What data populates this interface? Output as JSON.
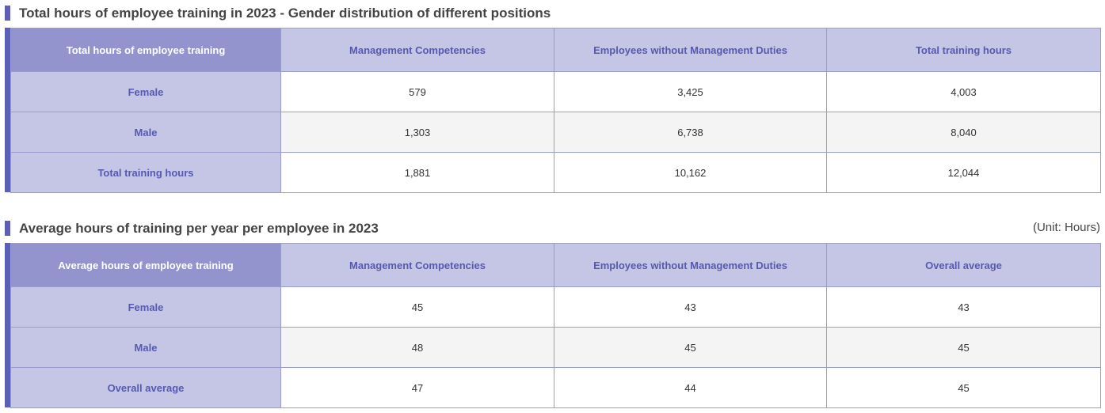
{
  "table1": {
    "title": "Total hours of employee training in 2023 - Gender distribution of different positions",
    "corner_label": "Total hours of employee training",
    "columns": [
      "Management Competencies",
      "Employees without Management Duties",
      "Total training hours"
    ],
    "rows": [
      {
        "label": "Female",
        "values": [
          "579",
          "3,425",
          "4,003"
        ]
      },
      {
        "label": "Male",
        "values": [
          "1,303",
          "6,738",
          "8,040"
        ]
      },
      {
        "label": "Total training hours",
        "values": [
          "1,881",
          "10,162",
          "12,044"
        ]
      }
    ]
  },
  "table2": {
    "title": "Average hours of training per year per employee in 2023",
    "unit": "(Unit: Hours)",
    "corner_label": "Average hours of employee training",
    "columns": [
      "Management Competencies",
      "Employees without Management Duties",
      "Overall average"
    ],
    "rows": [
      {
        "label": "Female",
        "values": [
          "45",
          "43",
          "43"
        ]
      },
      {
        "label": "Male",
        "values": [
          "48",
          "45",
          "45"
        ]
      },
      {
        "label": "Overall average",
        "values": [
          "47",
          "44",
          "45"
        ]
      }
    ]
  },
  "colors": {
    "accent": "#5b5fb5",
    "header_dark": "#9394ce",
    "header_light": "#c5c6e6",
    "header_text": "#5559b0",
    "border": "#9b9cce",
    "stripe_row": "#f4f4f4"
  }
}
